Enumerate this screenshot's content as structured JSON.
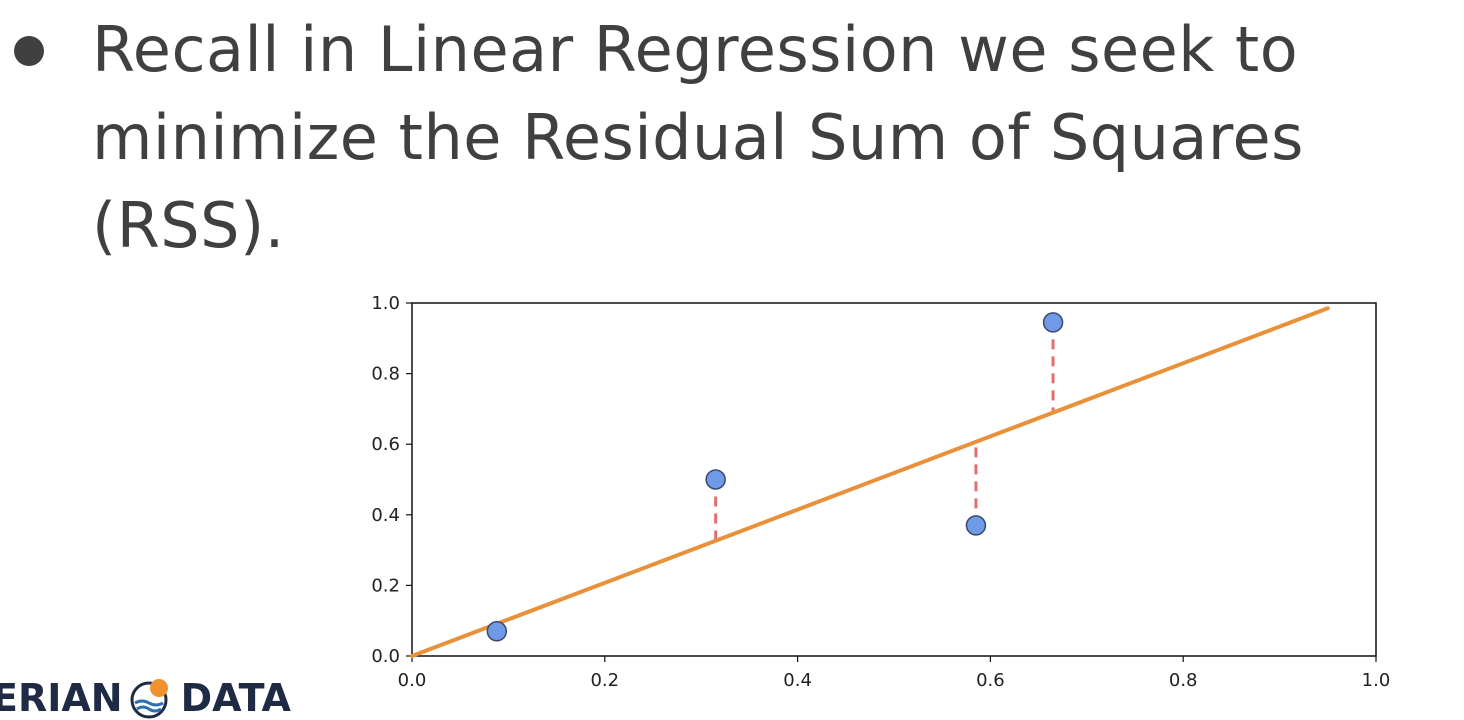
{
  "bullet": {
    "lines": [
      "Recall in Linear Regression we seek to",
      "minimize the Residual Sum of Squares",
      "(RSS)."
    ]
  },
  "brand": {
    "left": "ERIAN",
    "right": "DATA"
  },
  "colors": {
    "text": "#404040",
    "point_fill": "#6f9ae8",
    "point_stroke": "#3a4a6b",
    "fit_line": "#e8913a",
    "residual": "#e07070"
  },
  "chart_data": {
    "type": "scatter",
    "xlim": [
      0.0,
      1.0
    ],
    "ylim": [
      0.0,
      1.0
    ],
    "xticks": [
      "0.0",
      "0.2",
      "0.4",
      "0.6",
      "0.8",
      "1.0"
    ],
    "yticks": [
      "0.0",
      "0.2",
      "0.4",
      "0.6",
      "0.8",
      "1.0"
    ],
    "grid": false,
    "points": [
      {
        "x": 0.088,
        "y": 0.07
      },
      {
        "x": 0.315,
        "y": 0.5
      },
      {
        "x": 0.585,
        "y": 0.37
      },
      {
        "x": 0.665,
        "y": 0.945
      }
    ],
    "fit_line": {
      "x0": 0.0,
      "y0": 0.0,
      "x1": 0.95,
      "y1": 0.985
    },
    "residuals": "dashed vertical lines from each point to the fit line"
  }
}
